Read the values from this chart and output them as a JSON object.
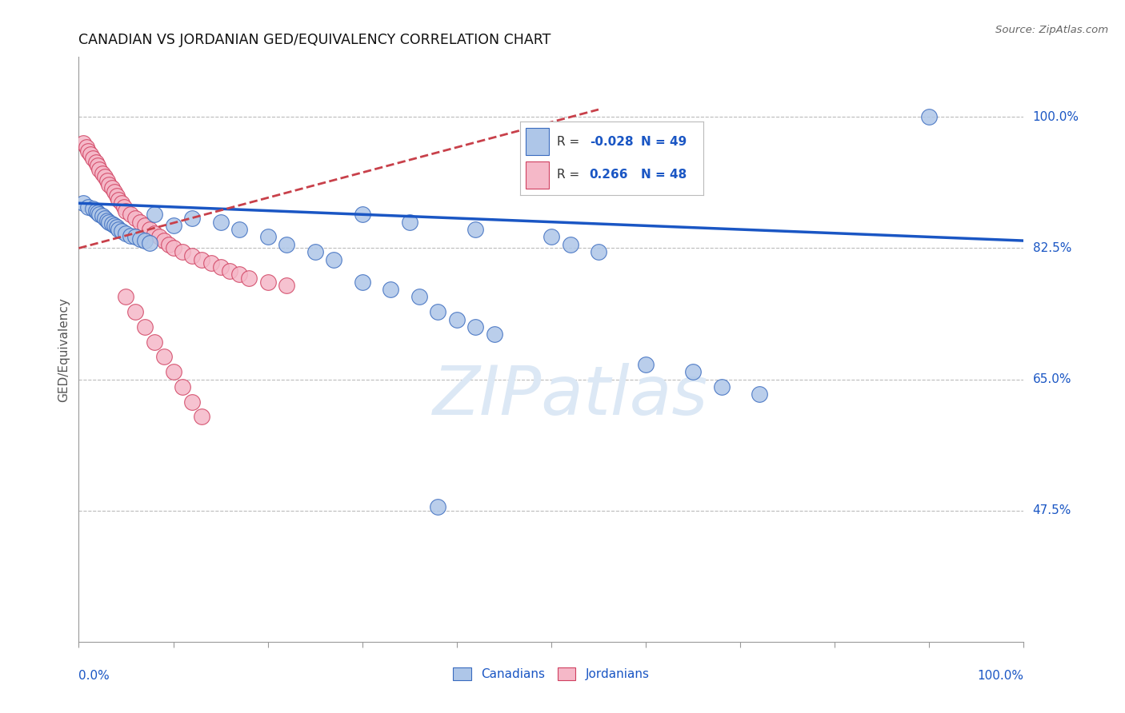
{
  "title": "CANADIAN VS JORDANIAN GED/EQUIVALENCY CORRELATION CHART",
  "source": "Source: ZipAtlas.com",
  "ylabel": "GED/Equivalency",
  "ytick_labels": [
    "100.0%",
    "82.5%",
    "65.0%",
    "47.5%"
  ],
  "ytick_values": [
    1.0,
    0.825,
    0.65,
    0.475
  ],
  "xmin": 0.0,
  "xmax": 1.0,
  "ymin": 0.3,
  "ymax": 1.08,
  "legend_R_blue": "-0.028",
  "legend_N_blue": "49",
  "legend_R_pink": "0.266",
  "legend_N_pink": "48",
  "blue_fill": "#aec6e8",
  "blue_edge": "#3a6bbf",
  "pink_fill": "#f5b8c8",
  "pink_edge": "#d04060",
  "blue_line": "#1a56c4",
  "pink_line": "#c8404a",
  "canadians_x": [
    0.005,
    0.01,
    0.015,
    0.018,
    0.02,
    0.022,
    0.025,
    0.028,
    0.03,
    0.032,
    0.035,
    0.038,
    0.04,
    0.042,
    0.045,
    0.05,
    0.055,
    0.06,
    0.065,
    0.07,
    0.075,
    0.08,
    0.1,
    0.12,
    0.15,
    0.17,
    0.2,
    0.22,
    0.25,
    0.27,
    0.3,
    0.33,
    0.36,
    0.38,
    0.4,
    0.42,
    0.44,
    0.3,
    0.35,
    0.42,
    0.5,
    0.52,
    0.55,
    0.6,
    0.65,
    0.68,
    0.72,
    0.9,
    0.38
  ],
  "canadians_y": [
    0.885,
    0.88,
    0.878,
    0.875,
    0.872,
    0.87,
    0.868,
    0.865,
    0.862,
    0.86,
    0.858,
    0.855,
    0.853,
    0.85,
    0.848,
    0.845,
    0.842,
    0.84,
    0.837,
    0.835,
    0.832,
    0.87,
    0.855,
    0.865,
    0.86,
    0.85,
    0.84,
    0.83,
    0.82,
    0.81,
    0.78,
    0.77,
    0.76,
    0.74,
    0.73,
    0.72,
    0.71,
    0.87,
    0.86,
    0.85,
    0.84,
    0.83,
    0.82,
    0.67,
    0.66,
    0.64,
    0.63,
    1.0,
    0.48
  ],
  "jordanians_x": [
    0.005,
    0.008,
    0.01,
    0.012,
    0.015,
    0.018,
    0.02,
    0.022,
    0.025,
    0.028,
    0.03,
    0.032,
    0.035,
    0.038,
    0.04,
    0.042,
    0.045,
    0.048,
    0.05,
    0.055,
    0.06,
    0.065,
    0.07,
    0.075,
    0.08,
    0.085,
    0.09,
    0.095,
    0.1,
    0.11,
    0.12,
    0.13,
    0.14,
    0.15,
    0.16,
    0.17,
    0.18,
    0.2,
    0.22,
    0.05,
    0.06,
    0.07,
    0.08,
    0.09,
    0.1,
    0.11,
    0.12,
    0.13
  ],
  "jordanians_y": [
    0.965,
    0.96,
    0.955,
    0.95,
    0.945,
    0.94,
    0.935,
    0.93,
    0.925,
    0.92,
    0.915,
    0.91,
    0.905,
    0.9,
    0.895,
    0.89,
    0.885,
    0.88,
    0.875,
    0.87,
    0.865,
    0.86,
    0.855,
    0.85,
    0.845,
    0.84,
    0.835,
    0.83,
    0.825,
    0.82,
    0.815,
    0.81,
    0.805,
    0.8,
    0.795,
    0.79,
    0.785,
    0.78,
    0.775,
    0.76,
    0.74,
    0.72,
    0.7,
    0.68,
    0.66,
    0.64,
    0.62,
    0.6
  ]
}
